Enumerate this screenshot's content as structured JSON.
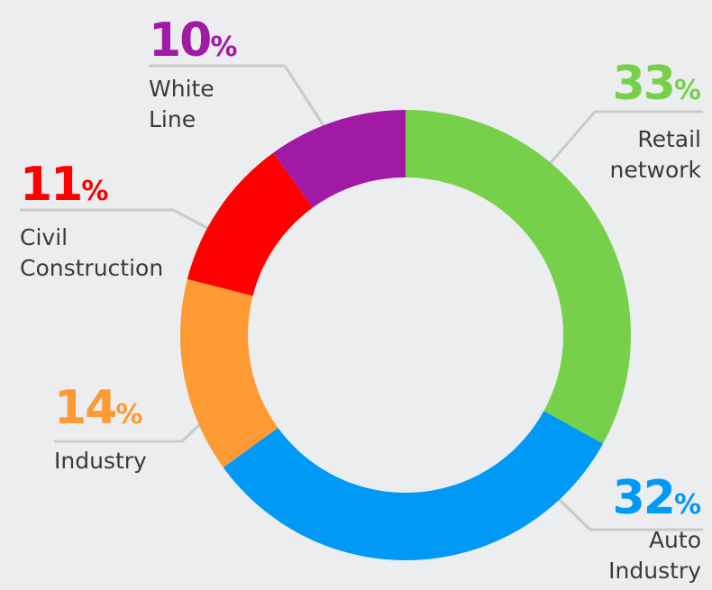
{
  "chart_data": {
    "type": "donut",
    "categories": [
      "Retail network",
      "Auto Industry",
      "Industry",
      "Civil Construction",
      "White Line"
    ],
    "values": [
      33,
      32,
      14,
      11,
      10
    ],
    "value_labels": [
      "33%",
      "32%",
      "14%",
      "11%",
      "10%"
    ],
    "colors": [
      "#77d04a",
      "#0099f5",
      "#fd9a33",
      "#fe0000",
      "#a01aa5"
    ]
  }
}
